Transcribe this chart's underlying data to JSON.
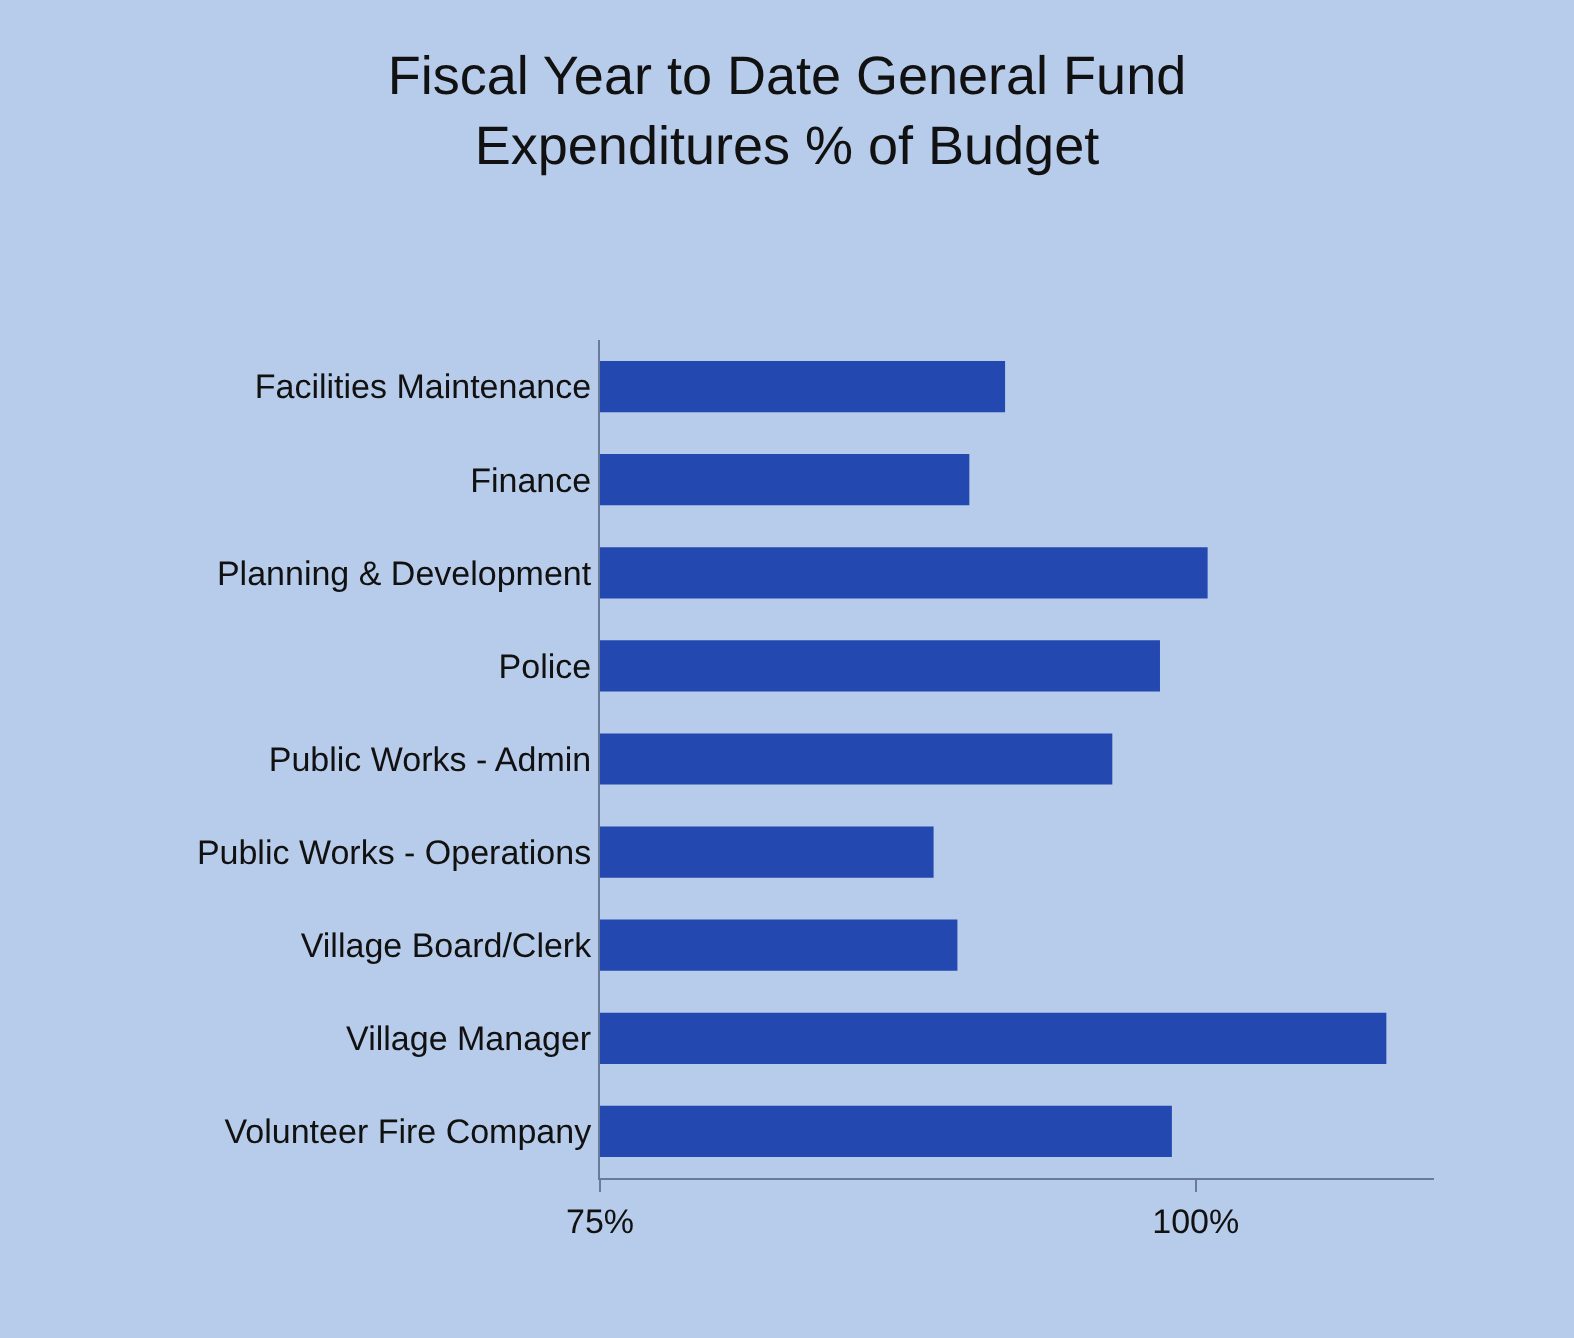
{
  "chart_data": {
    "type": "bar",
    "orientation": "horizontal",
    "title": "Fiscal Year to Date General Fund Expenditures % of Budget",
    "categories": [
      "Facilities Maintenance",
      "Finance",
      "Planning & Development",
      "Police",
      "Public Works - Admin",
      "Public Works - Operations",
      "Village Board/Clerk",
      "Village Manager",
      "Volunteer Fire Company"
    ],
    "values": [
      92,
      90.5,
      100.5,
      98.5,
      96.5,
      89,
      90,
      108,
      99
    ],
    "color": "#2348b0",
    "xlim": [
      75,
      110
    ],
    "xticks": [
      {
        "value": 75,
        "label": "75%"
      },
      {
        "value": 100,
        "label": "100%"
      }
    ],
    "grid": false,
    "legend": false
  }
}
